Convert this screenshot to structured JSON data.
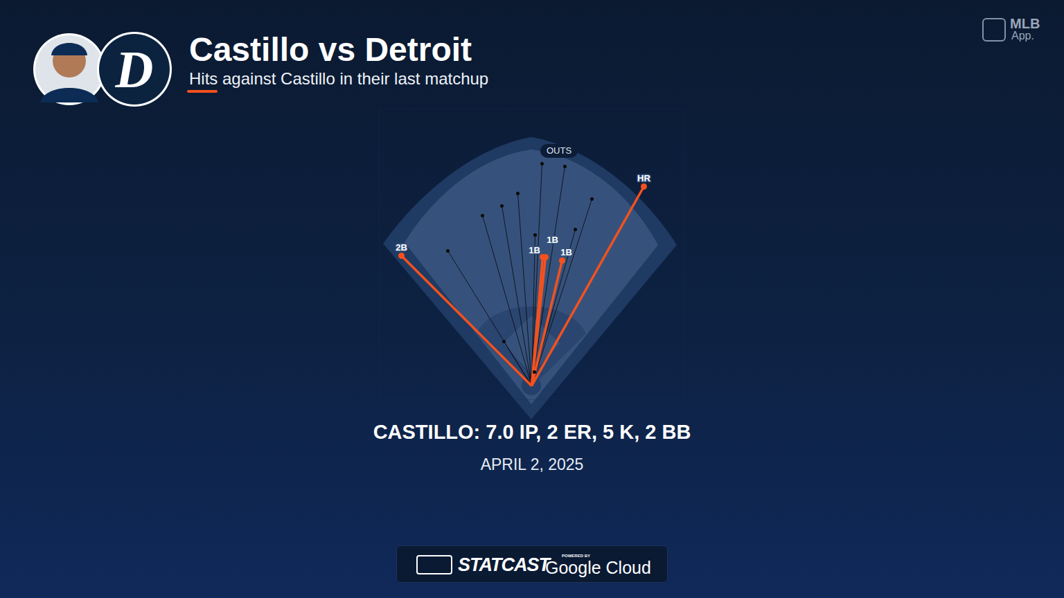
{
  "chart_data": {
    "type": "spray",
    "title": "Castillo vs Detroit",
    "subtitle": "Hits against Castillo in their last matchup",
    "team_logo": "D",
    "brand": [
      "MLB",
      "App."
    ],
    "origin": [
      0,
      0
    ],
    "xlim": [
      -220,
      220
    ],
    "ylim": [
      -20,
      400
    ],
    "xticks": [],
    "yticks": [],
    "tick_labels": false,
    "grid": false,
    "series": [
      {
        "color": "#f4511e",
        "marker": "circle",
        "x": [
          -188,
          16,
          20,
          44,
          162
        ],
        "y": [
          188,
          186,
          186,
          181,
          288
        ],
        "labels": [
          "2B",
          "1B",
          "1B",
          "1B",
          "HR"
        ]
      },
      {
        "name": "OUTS",
        "color": "#0a0a0a",
        "marker": "circle",
        "x": [
          -121,
          -71,
          -43,
          -20,
          15,
          48,
          87,
          63,
          5,
          -40,
          4
        ],
        "y": [
          195,
          246,
          260,
          278,
          321,
          317,
          270,
          226,
          218,
          64,
          20
        ]
      }
    ],
    "caption": "CASTILLO: 7.0 IP, 2 ER, 5 K, 2 BB",
    "date": "APRIL 2, 2025",
    "footer": {
      "statcast": "STATCAST",
      "powered_by": "POWERED BY",
      "partner": "Google Cloud"
    }
  }
}
